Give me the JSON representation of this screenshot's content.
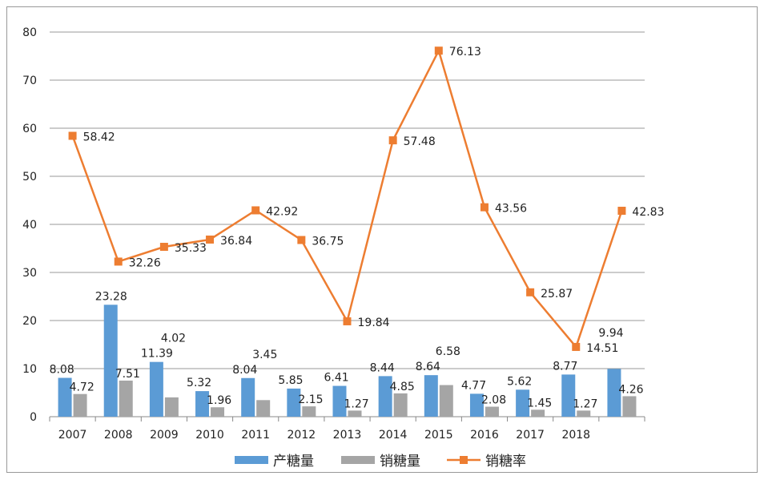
{
  "chart_data": {
    "type": "bar+line",
    "categories": [
      "2007",
      "2008",
      "2009",
      "2010",
      "2011",
      "2012",
      "2013",
      "2014",
      "2015",
      "2016",
      "2017",
      "2018",
      ""
    ],
    "ylim": [
      0,
      80
    ],
    "yticks": [
      0,
      10,
      20,
      30,
      40,
      50,
      60,
      70,
      80
    ],
    "grid": true,
    "legend_placement": "bottom",
    "series": [
      {
        "name": "产糖量",
        "type": "bar",
        "color": "#5B9BD5",
        "values": [
          8.08,
          23.28,
          11.39,
          5.32,
          8.04,
          5.85,
          6.41,
          8.44,
          8.64,
          4.77,
          5.62,
          8.77,
          9.94
        ]
      },
      {
        "name": "销糖量",
        "type": "bar",
        "color": "#A5A5A5",
        "values": [
          4.72,
          7.51,
          4.02,
          1.96,
          3.45,
          2.15,
          1.27,
          4.85,
          6.58,
          2.08,
          1.45,
          1.27,
          4.26
        ]
      },
      {
        "name": "销糖率",
        "type": "line",
        "color": "#ED7D31",
        "marker": "square",
        "values": [
          58.42,
          32.26,
          35.33,
          36.84,
          42.92,
          36.75,
          19.84,
          57.48,
          76.13,
          43.56,
          25.87,
          14.51,
          42.83
        ]
      }
    ]
  }
}
